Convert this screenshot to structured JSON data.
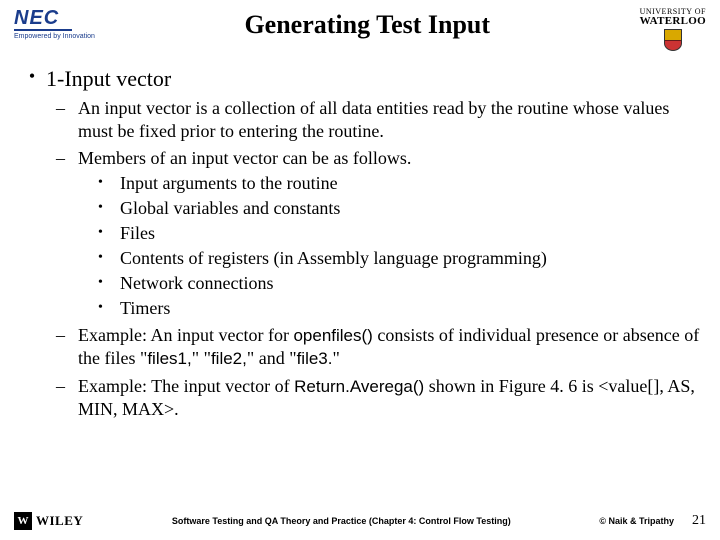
{
  "header": {
    "title": "Generating Test Input",
    "nec": {
      "word": "NEC",
      "tag": "Empowered by Innovation"
    },
    "uw": {
      "top": "UNIVERSITY OF",
      "bot": "WATERLOO"
    }
  },
  "body": {
    "l1": "1-Input vector",
    "d1": "An input vector is a collection of all data entities read by the routine whose values must be fixed prior to entering the routine.",
    "d2": "Members of an input vector can be as follows.",
    "m1": "Input arguments to the routine",
    "m2": "Global variables and constants",
    "m3": "Files",
    "m4": "Contents of registers (in Assembly language programming)",
    "m5": "Network connections",
    "m6": "Timers",
    "d3a": "Example: An input vector for ",
    "d3b": "openfiles()",
    "d3c": " consists of individual presence or absence of the files \"",
    "d3d": "files1,",
    "d3e": "\" \"",
    "d3f": "file2,",
    "d3g": "\" and \"",
    "d3h": "file3.",
    "d3i": "\"",
    "d4a": "Example: The input vector of ",
    "d4b": "Return.Averega()",
    "d4c": " shown in Figure 4. 6 is <value[], AS, MIN, MAX>."
  },
  "footer": {
    "wiley_mark": "W",
    "wiley": "WILEY",
    "center": "Software Testing and QA Theory and Practice (Chapter 4: Control Flow Testing)",
    "copyright": "© Naik & Tripathy",
    "page": "21"
  }
}
